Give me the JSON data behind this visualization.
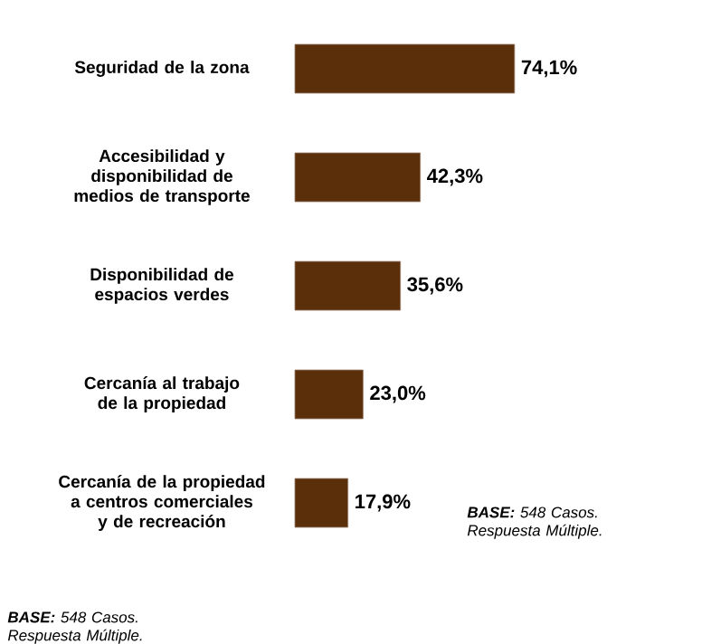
{
  "chart_data": {
    "type": "bar",
    "orientation": "horizontal",
    "categories": [
      "Seguridad de la zona",
      "Accesibilidad y disponibilidad de medios de transporte",
      "Disponibilidad de espacios verdes",
      "Cercanía al trabajo de la propiedad",
      "Cercanía de la propiedad a centros comerciales y de recreación"
    ],
    "values": [
      74.1,
      42.3,
      35.6,
      23.0,
      17.9
    ],
    "value_labels": [
      "74,1%",
      "42,3%",
      "35,6%",
      "23,0%",
      "17,9%"
    ],
    "color": "#5c2f0b",
    "annotations": [
      "**BASE:** 548 Casos. Respuesta Múltiple.",
      "**BASE:** 548 Casos. Respuesta Múltiple."
    ]
  }
}
